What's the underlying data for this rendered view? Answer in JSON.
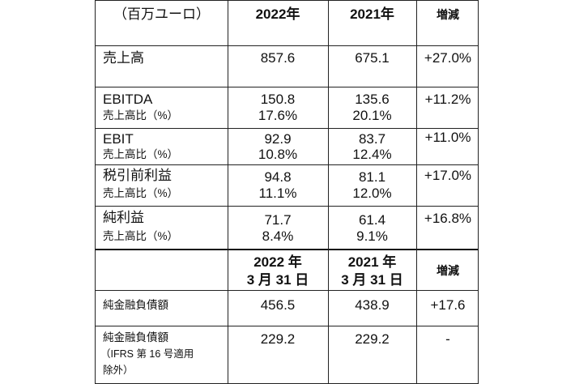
{
  "header": {
    "unit": "（百万ユーロ）",
    "col_2022": "2022年",
    "col_2021": "2021年",
    "col_change": "増減"
  },
  "rows": [
    {
      "label": "売上高",
      "v2022": "857.6",
      "v2021": "675.1",
      "change": "+27.0%"
    },
    {
      "label": "EBITDA",
      "sub": "売上高比（%）",
      "v2022": "150.8",
      "v2022s": "17.6%",
      "v2021": "135.6",
      "v2021s": "20.1%",
      "change": "+11.2%"
    },
    {
      "label": "EBIT",
      "sub": "売上高比（%）",
      "v2022": "92.9",
      "v2022s": "10.8%",
      "v2021": "83.7",
      "v2021s": "12.4%",
      "change": "+11.0%"
    },
    {
      "label": "税引前利益",
      "sub": "売上高比（%）",
      "v2022": "94.8",
      "v2022s": "11.1%",
      "v2021": "81.1",
      "v2021s": "12.0%",
      "change": "+17.0%"
    },
    {
      "label": "純利益",
      "sub": "売上高比（%）",
      "v2022": "71.7",
      "v2022s": "8.4%",
      "v2021": "61.4",
      "v2021s": "9.1%",
      "change": "+16.8%"
    }
  ],
  "header2": {
    "col_2022_l1": "2022 年",
    "col_2022_l2": "3 月 31 日",
    "col_2021_l1": "2021 年",
    "col_2021_l2": "3 月 31 日",
    "col_change": "増減"
  },
  "rows2": [
    {
      "label": "純金融負債額",
      "v2022": "456.5",
      "v2021": "438.9",
      "change": "+17.6"
    },
    {
      "label": "純金融負債額",
      "sub1": "（IFRS 第 16 号適用",
      "sub2": "除外）",
      "v2022": "229.2",
      "v2021": "229.2",
      "change": "-"
    }
  ]
}
